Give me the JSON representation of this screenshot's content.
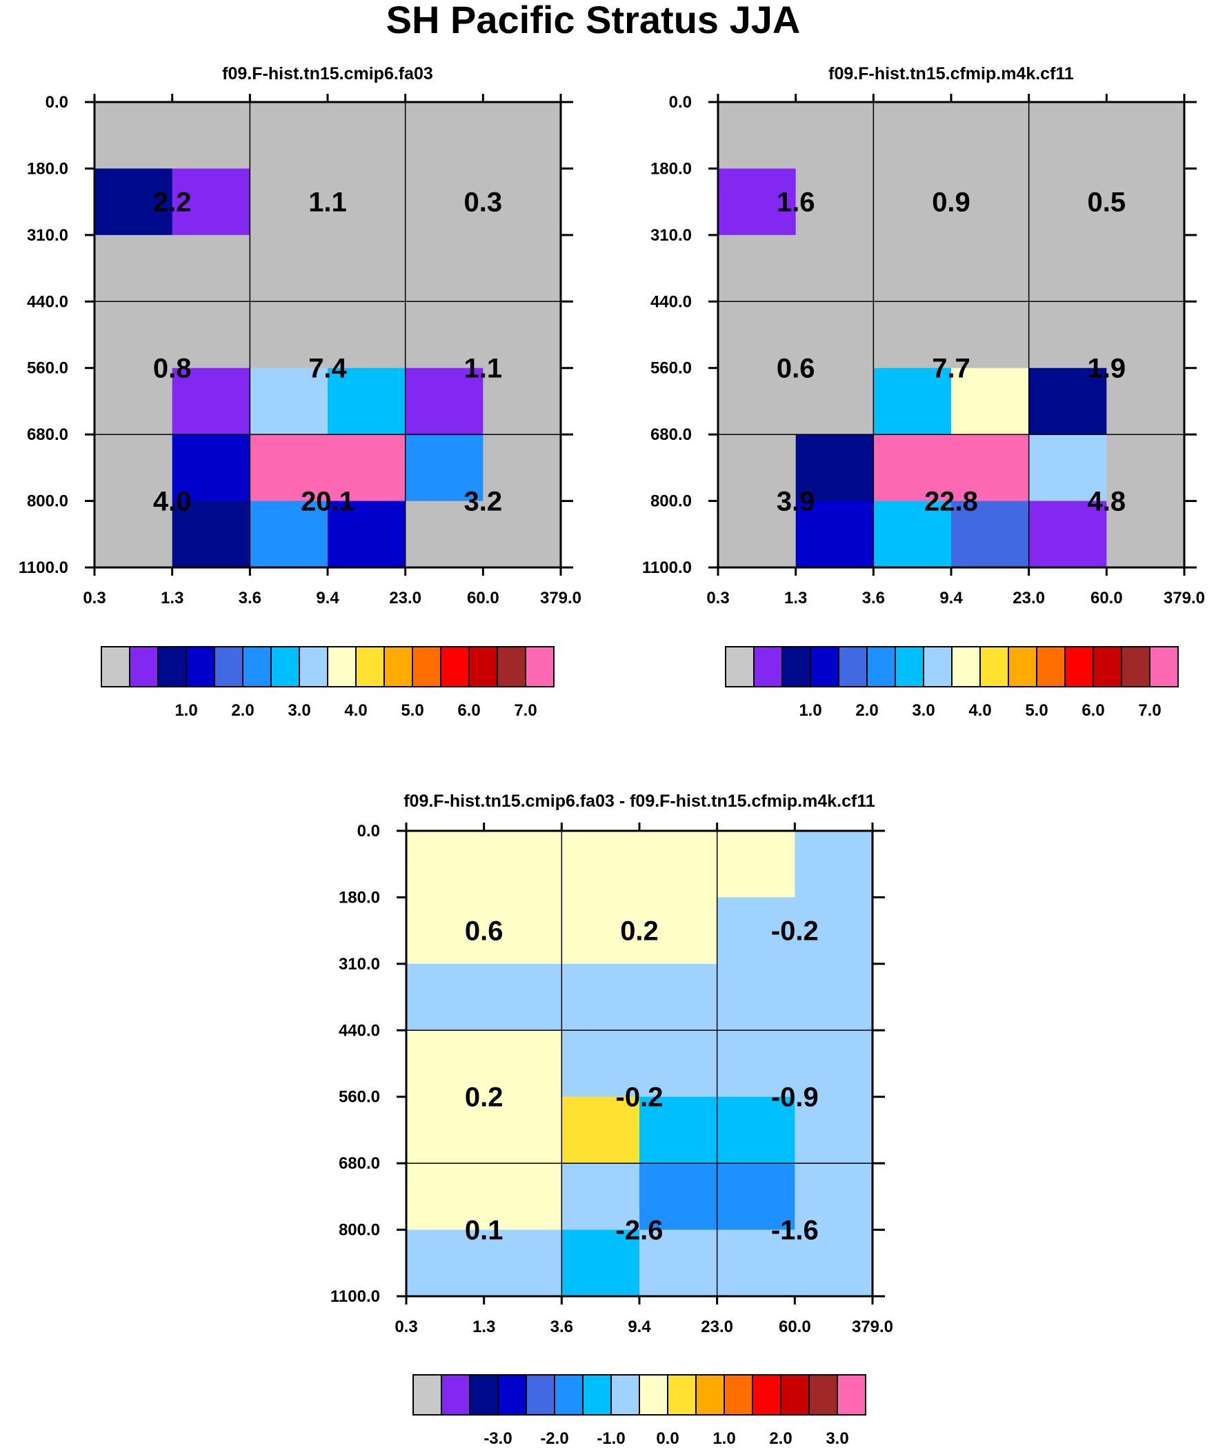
{
  "title": "SH Pacific Stratus JJA",
  "colors": {
    "background": "#ffffff",
    "missing": "#bebebe",
    "palette": [
      "#c8c8c8",
      "#8228f0",
      "#000a8c",
      "#0000cd",
      "#4169e1",
      "#1e90ff",
      "#00bfff",
      "#a0d2ff",
      "#ffffc8",
      "#ffe132",
      "#ffaa00",
      "#ff6e00",
      "#ff0000",
      "#c80000",
      "#a02828",
      "#ff69b4"
    ]
  },
  "chart_data": [
    {
      "type": "heatmap",
      "title": "f09.F-hist.tn15.cmip6.fa03",
      "x_ticks": [
        "0.3",
        "1.3",
        "3.6",
        "9.4",
        "23.0",
        "60.0",
        "379.0"
      ],
      "y_ticks": [
        "0.0",
        "180.0",
        "310.0",
        "440.0",
        "560.0",
        "680.0",
        "800.0",
        "1100.0"
      ],
      "cells": [
        [
          0,
          0,
          0,
          0,
          0,
          0
        ],
        [
          2,
          1,
          0,
          0,
          0,
          0
        ],
        [
          0,
          0,
          0,
          0,
          0,
          0
        ],
        [
          0,
          0,
          0,
          0,
          0,
          0
        ],
        [
          0,
          1,
          7,
          6,
          1,
          0
        ],
        [
          0,
          3,
          15,
          15,
          5,
          0
        ],
        [
          0,
          2,
          5,
          3,
          0,
          0
        ]
      ],
      "values": [
        [
          "2.2",
          "1.1",
          "0.3"
        ],
        [
          "0.8",
          "7.4",
          "1.1"
        ],
        [
          "4.0",
          "20.1",
          "3.2"
        ]
      ],
      "colorbar_labels": [
        "1.0",
        "2.0",
        "3.0",
        "4.0",
        "5.0",
        "6.0",
        "7.0"
      ]
    },
    {
      "type": "heatmap",
      "title": "f09.F-hist.tn15.cfmip.m4k.cf11",
      "x_ticks": [
        "0.3",
        "1.3",
        "3.6",
        "9.4",
        "23.0",
        "60.0",
        "379.0"
      ],
      "y_ticks": [
        "0.0",
        "180.0",
        "310.0",
        "440.0",
        "560.0",
        "680.0",
        "800.0",
        "1100.0"
      ],
      "cells": [
        [
          0,
          0,
          0,
          0,
          0,
          0
        ],
        [
          1,
          0,
          0,
          0,
          0,
          0
        ],
        [
          0,
          0,
          0,
          0,
          0,
          0
        ],
        [
          0,
          0,
          0,
          0,
          0,
          0
        ],
        [
          0,
          0,
          6,
          8,
          2,
          0
        ],
        [
          0,
          2,
          15,
          15,
          7,
          0
        ],
        [
          0,
          3,
          6,
          4,
          1,
          0
        ]
      ],
      "values": [
        [
          "1.6",
          "0.9",
          "0.5"
        ],
        [
          "0.6",
          "7.7",
          "1.9"
        ],
        [
          "3.9",
          "22.8",
          "4.8"
        ]
      ],
      "colorbar_labels": [
        "1.0",
        "2.0",
        "3.0",
        "4.0",
        "5.0",
        "6.0",
        "7.0"
      ]
    },
    {
      "type": "heatmap",
      "title": "f09.F-hist.tn15.cmip6.fa03 - f09.F-hist.tn15.cfmip.m4k.cf11",
      "x_ticks": [
        "0.3",
        "1.3",
        "3.6",
        "9.4",
        "23.0",
        "60.0",
        "379.0"
      ],
      "y_ticks": [
        "0.0",
        "180.0",
        "310.0",
        "440.0",
        "560.0",
        "680.0",
        "800.0",
        "1100.0"
      ],
      "cells": [
        [
          8,
          8,
          8,
          8,
          8,
          7
        ],
        [
          8,
          8,
          8,
          8,
          7,
          7
        ],
        [
          7,
          7,
          7,
          7,
          7,
          7
        ],
        [
          8,
          8,
          7,
          7,
          7,
          7
        ],
        [
          8,
          8,
          9,
          6,
          6,
          7
        ],
        [
          8,
          8,
          7,
          5,
          5,
          7
        ],
        [
          7,
          7,
          6,
          7,
          7,
          7
        ]
      ],
      "values": [
        [
          "0.6",
          "0.2",
          "-0.2"
        ],
        [
          "0.2",
          "-0.2",
          "-0.9"
        ],
        [
          "0.1",
          "-2.6",
          "-1.6"
        ]
      ],
      "colorbar_labels": [
        "-3.0",
        "-2.0",
        "-1.0",
        "0.0",
        "1.0",
        "2.0",
        "3.0"
      ]
    }
  ]
}
